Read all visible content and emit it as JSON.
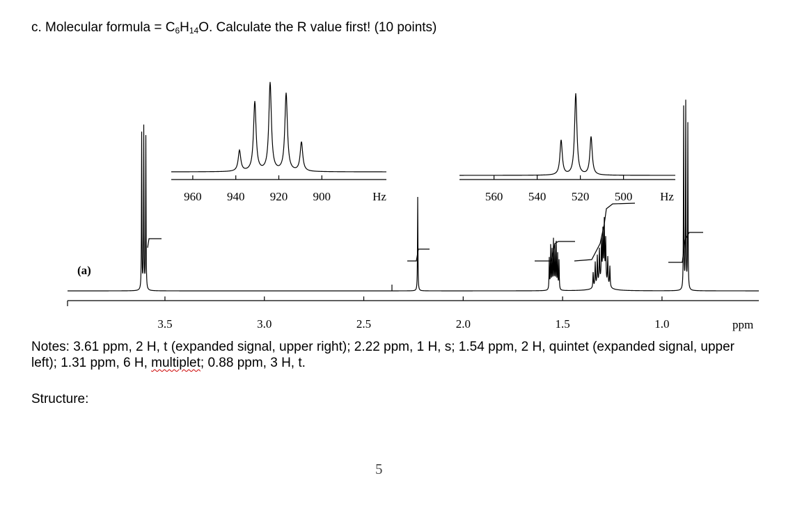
{
  "question": {
    "parts": [
      "c. Molecular formula = C",
      "6",
      "H",
      "14",
      "O. Calculate the R value first! (10 points)"
    ]
  },
  "spectrum": {
    "label": "(a)",
    "unit": "ppm",
    "xlim": [
      3.99,
      0.513
    ],
    "xticks": [
      3.5,
      {
        "value": 3,
        "label": "3.0"
      },
      2.5,
      {
        "value": 2,
        "label": "2.0"
      },
      1.5,
      {
        "value": 1,
        "label": "1.0"
      }
    ],
    "insets": [
      {
        "unit": "Hz",
        "xlim": [
          970,
          870
        ],
        "xticks": [
          960,
          940,
          920,
          900
        ]
      },
      {
        "unit": "Hz",
        "xlim": [
          576,
          476
        ],
        "xticks": [
          560,
          540,
          520,
          500
        ]
      }
    ]
  },
  "notes": {
    "parts": [
      "Notes: 3.61 ppm, 2 H, t (expanded signal, upper right); 2.22 ppm, 1 H, s; 1.54 ppm, 2 H, quintet (expanded signal, upper left); 1.31 ppm, 6 H, ",
      "multiplet",
      "; 0.88 ppm, 3 H, t."
    ]
  },
  "structure_label": "Structure:",
  "page_number": "5"
}
